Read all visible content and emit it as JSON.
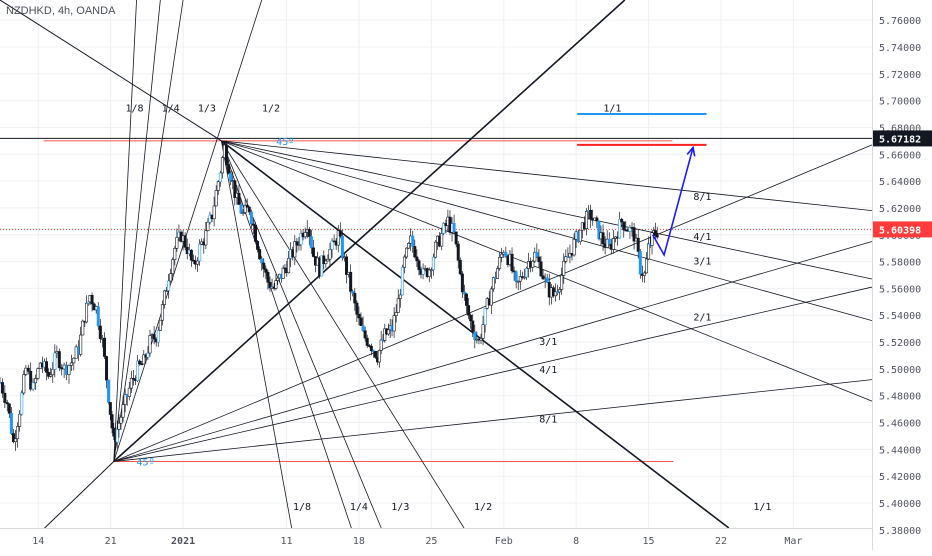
{
  "header": {
    "symbol_label": "NZDHKD, 4h, OANDA"
  },
  "chart_data": {
    "type": "candlestick",
    "symbol": "NZDHKD",
    "interval": "4h",
    "source": "OANDA",
    "ylim": [
      5.365,
      5.775
    ],
    "price_ticks": [
      5.38,
      5.4,
      5.42,
      5.44,
      5.46,
      5.48,
      5.5,
      5.52,
      5.54,
      5.56,
      5.58,
      5.6,
      5.62,
      5.64,
      5.66,
      5.68,
      5.7,
      5.72,
      5.74,
      5.76
    ],
    "time_ticks": [
      {
        "label": "14",
        "day": 14
      },
      {
        "label": "21",
        "day": 21
      },
      {
        "label": "2021",
        "day": 28
      },
      {
        "label": "11",
        "day": 38
      },
      {
        "label": "18",
        "day": 45
      },
      {
        "label": "25",
        "day": 52
      },
      {
        "label": "Feb",
        "day": 59
      },
      {
        "label": "8",
        "day": 66
      },
      {
        "label": "15",
        "day": 73
      },
      {
        "label": "22",
        "day": 80
      },
      {
        "label": "Mar",
        "day": 87
      }
    ],
    "day_range": [
      10.3,
      94.6
    ],
    "current_price": {
      "label": "5.60398",
      "value": 5.60398,
      "color": "#ff3b3b"
    },
    "marked_level": {
      "label": "5.67182",
      "value": 5.67182,
      "color": "#131722"
    },
    "price_path": [
      [
        10.3,
        5.49
      ],
      [
        11.0,
        5.475
      ],
      [
        11.6,
        5.445
      ],
      [
        12.2,
        5.47
      ],
      [
        12.8,
        5.5
      ],
      [
        13.5,
        5.485
      ],
      [
        14.2,
        5.505
      ],
      [
        15.0,
        5.495
      ],
      [
        15.8,
        5.51
      ],
      [
        16.5,
        5.5
      ],
      [
        17.2,
        5.505
      ],
      [
        17.9,
        5.515
      ],
      [
        18.5,
        5.54
      ],
      [
        19.0,
        5.555
      ],
      [
        19.6,
        5.545
      ],
      [
        20.2,
        5.52
      ],
      [
        20.8,
        5.48
      ],
      [
        21.3,
        5.445
      ],
      [
        21.8,
        5.46
      ],
      [
        22.4,
        5.475
      ],
      [
        23.0,
        5.49
      ],
      [
        23.6,
        5.5
      ],
      [
        24.2,
        5.505
      ],
      [
        24.8,
        5.52
      ],
      [
        25.4,
        5.525
      ],
      [
        26.0,
        5.545
      ],
      [
        26.6,
        5.57
      ],
      [
        27.2,
        5.59
      ],
      [
        27.8,
        5.6
      ],
      [
        28.4,
        5.59
      ],
      [
        29.0,
        5.575
      ],
      [
        29.6,
        5.59
      ],
      [
        30.2,
        5.6
      ],
      [
        30.8,
        5.615
      ],
      [
        31.4,
        5.64
      ],
      [
        32.0,
        5.665
      ],
      [
        32.6,
        5.645
      ],
      [
        33.2,
        5.625
      ],
      [
        33.8,
        5.615
      ],
      [
        34.4,
        5.62
      ],
      [
        35.0,
        5.6
      ],
      [
        35.6,
        5.58
      ],
      [
        36.2,
        5.565
      ],
      [
        36.8,
        5.56
      ],
      [
        37.5,
        5.57
      ],
      [
        38.2,
        5.58
      ],
      [
        38.8,
        5.59
      ],
      [
        39.4,
        5.6
      ],
      [
        40.0,
        5.61
      ],
      [
        40.6,
        5.585
      ],
      [
        41.2,
        5.575
      ],
      [
        41.8,
        5.585
      ],
      [
        42.4,
        5.59
      ],
      [
        43.0,
        5.6
      ],
      [
        43.6,
        5.58
      ],
      [
        44.2,
        5.56
      ],
      [
        44.8,
        5.54
      ],
      [
        45.4,
        5.525
      ],
      [
        46.0,
        5.52
      ],
      [
        46.8,
        5.51
      ],
      [
        47.5,
        5.525
      ],
      [
        48.2,
        5.53
      ],
      [
        48.8,
        5.55
      ],
      [
        49.4,
        5.58
      ],
      [
        50.0,
        5.595
      ],
      [
        50.6,
        5.585
      ],
      [
        51.2,
        5.57
      ],
      [
        51.8,
        5.575
      ],
      [
        52.4,
        5.59
      ],
      [
        53.0,
        5.6
      ],
      [
        53.6,
        5.61
      ],
      [
        54.2,
        5.6
      ],
      [
        54.8,
        5.57
      ],
      [
        55.4,
        5.545
      ],
      [
        56.0,
        5.53
      ],
      [
        56.6,
        5.52
      ],
      [
        57.2,
        5.54
      ],
      [
        57.8,
        5.56
      ],
      [
        58.4,
        5.575
      ],
      [
        59.0,
        5.59
      ],
      [
        59.6,
        5.58
      ],
      [
        60.2,
        5.56
      ],
      [
        60.8,
        5.57
      ],
      [
        61.4,
        5.58
      ],
      [
        62.0,
        5.585
      ],
      [
        62.6,
        5.575
      ],
      [
        63.2,
        5.56
      ],
      [
        63.8,
        5.555
      ],
      [
        64.4,
        5.565
      ],
      [
        65.0,
        5.58
      ],
      [
        65.6,
        5.59
      ],
      [
        66.2,
        5.6
      ],
      [
        66.8,
        5.61
      ],
      [
        67.4,
        5.615
      ],
      [
        68.0,
        5.605
      ],
      [
        68.6,
        5.595
      ],
      [
        69.2,
        5.59
      ],
      [
        69.8,
        5.6
      ],
      [
        70.4,
        5.61
      ],
      [
        71.0,
        5.605
      ],
      [
        71.6,
        5.6
      ],
      [
        72.2,
        5.575
      ],
      [
        72.6,
        5.57
      ],
      [
        73.0,
        5.59
      ],
      [
        73.5,
        5.6
      ],
      [
        74.0,
        5.604
      ]
    ],
    "projection_arrow": {
      "from": [
        73.4,
        5.6
      ],
      "via": [
        74.5,
        5.585
      ],
      "to": [
        77.3,
        5.665
      ],
      "color": "#1a1aff"
    },
    "horizontal_levels": [
      {
        "name": "upper-red",
        "value": 5.67,
        "day_from": 14.5,
        "day_to": 75.3,
        "color": "#ff5252",
        "width": 1
      },
      {
        "name": "upper-red-strong",
        "value": 5.667,
        "day_from": 66.1,
        "day_to": 78.6,
        "color": "#ff1f1f",
        "width": 2
      },
      {
        "name": "blue-level",
        "value": 5.69,
        "day_from": 66.1,
        "day_to": 78.6,
        "color": "#2196f3",
        "width": 2
      },
      {
        "name": "lower-red",
        "value": 5.431,
        "day_from": 21.3,
        "day_to": 75.4,
        "color": "#ff5252",
        "width": 1
      }
    ],
    "fans": [
      {
        "name": "upper-gann-fan",
        "origin": [
          31.7,
          5.67
        ],
        "color": "#131722",
        "lines": [
          {
            "label": "1/8",
            "through": [
              39.0,
              5.36
            ]
          },
          {
            "label": "1/4",
            "through": [
              45.2,
              5.36
            ]
          },
          {
            "label": "1/3",
            "through": [
              48.3,
              5.36
            ]
          },
          {
            "label": "1/2",
            "through": [
              56.9,
              5.36
            ]
          },
          {
            "label": "1/1",
            "through": [
              84.4,
              5.36
            ]
          },
          {
            "label": "2/1",
            "through": [
              94.6,
              5.476
            ]
          },
          {
            "label": "3/1",
            "through": [
              94.6,
              5.536
            ]
          },
          {
            "label": "4/1",
            "through": [
              94.6,
              5.567
            ]
          },
          {
            "label": "8/1",
            "through": [
              94.6,
              5.618
            ]
          }
        ]
      },
      {
        "name": "lower-gann-fan",
        "origin": [
          21.3,
          5.431
        ],
        "color": "#131722",
        "lines": [
          {
            "label": "1/8",
            "through": [
              23.5,
              5.775
            ]
          },
          {
            "label": "1/4",
            "through": [
              25.8,
              5.775
            ]
          },
          {
            "label": "1/3",
            "through": [
              28.0,
              5.775
            ]
          },
          {
            "label": "1/2",
            "through": [
              35.6,
              5.775
            ]
          },
          {
            "label": "1/1",
            "through": [
              70.7,
              5.775
            ]
          },
          {
            "label": "2/1",
            "through": [
              94.6,
              5.667
            ]
          },
          {
            "label": "3/1",
            "through": [
              94.6,
              5.595
            ]
          },
          {
            "label": "4/1",
            "through": [
              94.6,
              5.561
            ]
          },
          {
            "label": "8/1",
            "through": [
              94.6,
              5.492
            ]
          }
        ]
      }
    ],
    "extra_lines": [
      {
        "name": "upper-left-diagonal",
        "from": [
          10.3,
          5.775
        ],
        "to": [
          31.7,
          5.67
        ],
        "color": "#131722"
      },
      {
        "name": "lower-left-diagonal",
        "from": [
          12.0,
          5.362
        ],
        "to": [
          21.3,
          5.431
        ],
        "color": "#131722"
      }
    ],
    "angle_labels": [
      {
        "text": "45º",
        "at": [
          37.0,
          5.67
        ],
        "color": "#2196f3"
      },
      {
        "text": "45º",
        "at": [
          23.5,
          5.431
        ],
        "color": "#2196f3"
      }
    ],
    "fan_labels": [
      {
        "text": "1/8",
        "at": [
          23.3,
          5.692
        ]
      },
      {
        "text": "1/4",
        "at": [
          26.8,
          5.692
        ]
      },
      {
        "text": "1/3",
        "at": [
          30.3,
          5.692
        ]
      },
      {
        "text": "1/2",
        "at": [
          36.5,
          5.692
        ]
      },
      {
        "text": "1/1",
        "at": [
          69.5,
          5.692
        ]
      },
      {
        "text": "8/1",
        "at": [
          78.2,
          5.626
        ]
      },
      {
        "text": "4/1",
        "at": [
          78.2,
          5.596
        ]
      },
      {
        "text": "3/1",
        "at": [
          78.2,
          5.578
        ]
      },
      {
        "text": "2/1",
        "at": [
          78.2,
          5.536
        ]
      },
      {
        "text": "3/1",
        "at": [
          63.3,
          5.518
        ]
      },
      {
        "text": "4/1",
        "at": [
          63.3,
          5.497
        ]
      },
      {
        "text": "8/1",
        "at": [
          63.3,
          5.46
        ]
      },
      {
        "text": "1/8",
        "at": [
          39.5,
          5.395
        ]
      },
      {
        "text": "1/4",
        "at": [
          45.0,
          5.395
        ]
      },
      {
        "text": "1/3",
        "at": [
          49.0,
          5.395
        ]
      },
      {
        "text": "1/2",
        "at": [
          57.0,
          5.395
        ]
      },
      {
        "text": "1/1",
        "at": [
          84.0,
          5.395
        ]
      }
    ]
  }
}
